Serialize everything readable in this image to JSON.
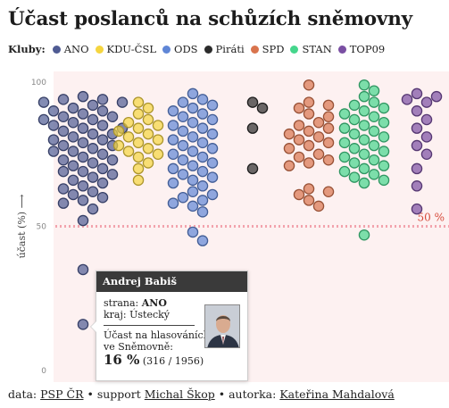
{
  "title": "Účast poslanců na schůzích sněmovny",
  "legend_label": "Kluby:",
  "parties": [
    {
      "name": "ANO",
      "color": "#4f5b93"
    },
    {
      "name": "KDU-ČSL",
      "color": "#f5d53f"
    },
    {
      "name": "ODS",
      "color": "#5f86d6"
    },
    {
      "name": "Piráti",
      "color": "#2b2b2b"
    },
    {
      "name": "SPD",
      "color": "#d9744d"
    },
    {
      "name": "STAN",
      "color": "#45d68c"
    },
    {
      "name": "TOP09",
      "color": "#7a4fa3"
    }
  ],
  "chart_data": {
    "type": "scatter",
    "ylabel": "účast (%) ⟶",
    "ylim": [
      0,
      100
    ],
    "yticks": [
      "100",
      "50",
      "0"
    ],
    "threshold": {
      "value": 50,
      "label": "50 %",
      "color": "#f2a3ad"
    },
    "series": [
      {
        "name": "ANO",
        "values": [
          95,
          94,
          94,
          93,
          93,
          92,
          91,
          90,
          90,
          89,
          88,
          88,
          87,
          87,
          86,
          85,
          85,
          84,
          84,
          83,
          82,
          82,
          81,
          80,
          80,
          79,
          78,
          78,
          77,
          76,
          76,
          75,
          74,
          73,
          73,
          72,
          71,
          70,
          69,
          69,
          68,
          67,
          66,
          65,
          64,
          63,
          62,
          61,
          60,
          59,
          58,
          56,
          52,
          35,
          16
        ]
      },
      {
        "name": "KDU-ČSL",
        "values": [
          93,
          91,
          89,
          87,
          86,
          85,
          84,
          83,
          82,
          81,
          80,
          79,
          78,
          77,
          76,
          75,
          74,
          72,
          70,
          66
        ]
      },
      {
        "name": "ODS",
        "values": [
          96,
          94,
          93,
          92,
          91,
          90,
          89,
          88,
          87,
          86,
          85,
          84,
          83,
          82,
          81,
          80,
          79,
          78,
          77,
          76,
          75,
          74,
          73,
          72,
          71,
          70,
          69,
          68,
          67,
          66,
          65,
          64,
          62,
          61,
          60,
          59,
          58,
          57,
          55,
          48,
          45
        ]
      },
      {
        "name": "Piráti",
        "values": [
          93,
          91,
          84,
          70
        ]
      },
      {
        "name": "SPD",
        "values": [
          99,
          93,
          92,
          91,
          89,
          88,
          86,
          85,
          84,
          83,
          82,
          81,
          80,
          79,
          78,
          77,
          75,
          74,
          73,
          72,
          71,
          63,
          62,
          61,
          59,
          57
        ]
      },
      {
        "name": "STAN",
        "values": [
          99,
          97,
          95,
          93,
          92,
          91,
          90,
          89,
          88,
          87,
          86,
          85,
          84,
          83,
          82,
          81,
          80,
          79,
          78,
          77,
          76,
          75,
          74,
          73,
          72,
          71,
          70,
          69,
          68,
          67,
          66,
          65,
          47
        ]
      },
      {
        "name": "TOP09",
        "values": [
          96,
          95,
          94,
          93,
          90,
          87,
          84,
          81,
          78,
          75,
          70,
          64,
          56
        ]
      }
    ]
  },
  "tooltip": {
    "name": "Andrej Babiš",
    "party_label": "strana:",
    "party": "ANO",
    "region_label": "kraj:",
    "region": "Ústecký",
    "attendance_label_1": "Účast na hlasováních",
    "attendance_label_2": "ve Sněmovně:",
    "percent": "16 %",
    "detail": "(316 / 1956)",
    "percent_value": 16
  },
  "footer": {
    "data_label": "data:",
    "data_source": "PSP ČR",
    "support_label": "• support",
    "support_name": "Michal Škop",
    "author_label": "• autorka:",
    "author_name": "Kateřina Mahdalová"
  }
}
